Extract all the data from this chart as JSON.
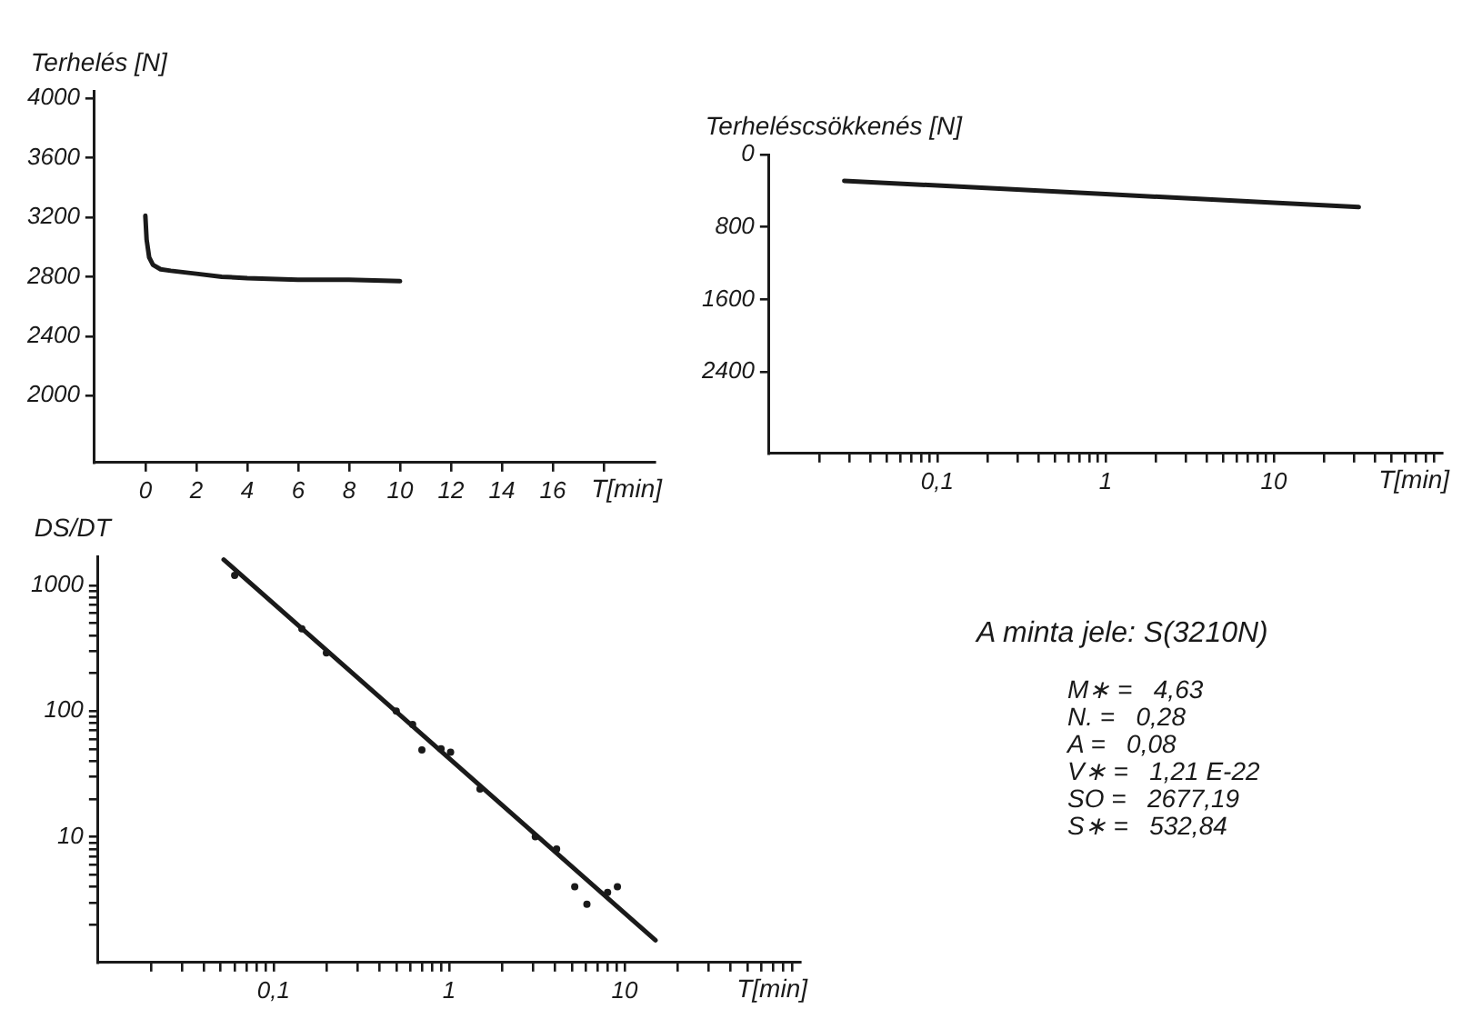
{
  "chart_data": [
    {
      "type": "line",
      "ylabel": "Terhelés [N]",
      "xlabel": "T[min]",
      "xlim": [
        -2,
        20
      ],
      "ylim": [
        1550,
        4050
      ],
      "xticks": [
        0,
        2,
        4,
        6,
        8,
        10,
        12,
        14,
        16,
        {
          "value": 18,
          "label": null
        }
      ],
      "yticks": [
        2000,
        2400,
        2800,
        3200,
        3600,
        4000
      ],
      "grid": false,
      "legend": false,
      "marker": "none",
      "line_style": "solid",
      "series": [
        {
          "color": "#1a1a1a",
          "x": [
            0,
            0.05,
            0.15,
            0.3,
            0.6,
            1,
            2,
            3,
            4,
            6,
            8,
            10
          ],
          "values": [
            3210,
            3050,
            2930,
            2880,
            2850,
            2840,
            2820,
            2800,
            2790,
            2780,
            2780,
            2770
          ]
        }
      ]
    },
    {
      "type": "line",
      "ylabel": "Terheléscsökkenés [N]",
      "xlabel": "T[min]",
      "log": "x",
      "xlim": [
        0.01,
        100
      ],
      "ylim": [
        3300,
        0
      ],
      "xticks": [
        {
          "value": 0.02,
          "label": null
        },
        {
          "value": 0.03,
          "label": null
        },
        {
          "value": 0.04,
          "label": null
        },
        {
          "value": 0.05,
          "label": null
        },
        {
          "value": 0.06,
          "label": null
        },
        {
          "value": 0.07,
          "label": null
        },
        {
          "value": 0.08,
          "label": null
        },
        {
          "value": 0.09,
          "label": null
        },
        {
          "value": 0.1,
          "label": "0,1"
        },
        {
          "value": 0.2,
          "label": null
        },
        {
          "value": 0.3,
          "label": null
        },
        {
          "value": 0.4,
          "label": null
        },
        {
          "value": 0.5,
          "label": null
        },
        {
          "value": 0.6,
          "label": null
        },
        {
          "value": 0.7,
          "label": null
        },
        {
          "value": 0.8,
          "label": null
        },
        {
          "value": 0.9,
          "label": null
        },
        1,
        {
          "value": 2,
          "label": null
        },
        {
          "value": 3,
          "label": null
        },
        {
          "value": 4,
          "label": null
        },
        {
          "value": 5,
          "label": null
        },
        {
          "value": 6,
          "label": null
        },
        {
          "value": 7,
          "label": null
        },
        {
          "value": 8,
          "label": null
        },
        {
          "value": 9,
          "label": null
        },
        10,
        {
          "value": 20,
          "label": null
        },
        {
          "value": 30,
          "label": null
        },
        {
          "value": 40,
          "label": null
        },
        {
          "value": 50,
          "label": null
        },
        {
          "value": 60,
          "label": null
        },
        {
          "value": 70,
          "label": null
        },
        {
          "value": 80,
          "label": null
        },
        {
          "value": 90,
          "label": null
        }
      ],
      "yticks": [
        0,
        800,
        1600,
        2400
      ],
      "grid": false,
      "legend": false,
      "marker": "none",
      "line_style": "solid",
      "series": [
        {
          "color": "#1a1a1a",
          "x": [
            0.028,
            0.1,
            1,
            10,
            32
          ],
          "values": [
            290,
            342,
            437,
            532,
            580
          ]
        }
      ]
    },
    {
      "type": "scatter",
      "ylabel": "DS/DT",
      "xlabel": "T[min]",
      "log": "xy",
      "xlim": [
        0.01,
        100
      ],
      "ylim": [
        1,
        1700
      ],
      "xticks": [
        {
          "value": 0.02,
          "label": null
        },
        {
          "value": 0.03,
          "label": null
        },
        {
          "value": 0.04,
          "label": null
        },
        {
          "value": 0.05,
          "label": null
        },
        {
          "value": 0.06,
          "label": null
        },
        {
          "value": 0.07,
          "label": null
        },
        {
          "value": 0.08,
          "label": null
        },
        {
          "value": 0.09,
          "label": null
        },
        {
          "value": 0.1,
          "label": "0,1"
        },
        {
          "value": 0.2,
          "label": null
        },
        {
          "value": 0.3,
          "label": null
        },
        {
          "value": 0.4,
          "label": null
        },
        {
          "value": 0.5,
          "label": null
        },
        {
          "value": 0.6,
          "label": null
        },
        {
          "value": 0.7,
          "label": null
        },
        {
          "value": 0.8,
          "label": null
        },
        {
          "value": 0.9,
          "label": null
        },
        1,
        {
          "value": 2,
          "label": null
        },
        {
          "value": 3,
          "label": null
        },
        {
          "value": 4,
          "label": null
        },
        {
          "value": 5,
          "label": null
        },
        {
          "value": 6,
          "label": null
        },
        {
          "value": 7,
          "label": null
        },
        {
          "value": 8,
          "label": null
        },
        {
          "value": 9,
          "label": null
        },
        10,
        {
          "value": 20,
          "label": null
        },
        {
          "value": 30,
          "label": null
        },
        {
          "value": 40,
          "label": null
        },
        {
          "value": 50,
          "label": null
        },
        {
          "value": 60,
          "label": null
        },
        {
          "value": 70,
          "label": null
        },
        {
          "value": 80,
          "label": null
        },
        {
          "value": 90,
          "label": null
        }
      ],
      "yticks": [
        {
          "value": 2,
          "label": null
        },
        {
          "value": 3,
          "label": null
        },
        {
          "value": 4,
          "label": null
        },
        {
          "value": 5,
          "label": null
        },
        {
          "value": 6,
          "label": null
        },
        {
          "value": 7,
          "label": null
        },
        {
          "value": 8,
          "label": null
        },
        {
          "value": 9,
          "label": null
        },
        10,
        {
          "value": 20,
          "label": null
        },
        {
          "value": 30,
          "label": null
        },
        {
          "value": 40,
          "label": null
        },
        {
          "value": 50,
          "label": null
        },
        {
          "value": 60,
          "label": null
        },
        {
          "value": 70,
          "label": null
        },
        {
          "value": 80,
          "label": null
        },
        {
          "value": 90,
          "label": null
        },
        100,
        {
          "value": 200,
          "label": null
        },
        {
          "value": 300,
          "label": null
        },
        {
          "value": 400,
          "label": null
        },
        {
          "value": 500,
          "label": null
        },
        {
          "value": 600,
          "label": null
        },
        {
          "value": 700,
          "label": null
        },
        {
          "value": 800,
          "label": null
        },
        {
          "value": 900,
          "label": null
        },
        1000
      ],
      "grid": false,
      "legend": false,
      "series": [
        {
          "type": "scatter",
          "marker": "circle",
          "color": "#1a1a1a",
          "x": [
            0.06,
            0.145,
            0.2,
            0.5,
            0.62,
            0.7,
            0.9,
            1.02,
            1.5,
            3.1,
            4.1,
            5.2,
            6.1,
            8,
            9.1
          ],
          "values": [
            1200,
            450,
            290,
            100,
            78,
            49,
            50,
            47,
            24,
            10,
            8,
            4,
            2.9,
            3.6,
            4
          ]
        },
        {
          "type": "line",
          "marker": "none",
          "line_style": "solid",
          "color": "#1a1a1a",
          "x": [
            0.052,
            15
          ],
          "values": [
            1600,
            1.5
          ]
        }
      ]
    },
    {
      "type": "other",
      "title": "A minta jele:  S(3210N)",
      "annotations": [
        "M∗ =   4,63",
        "N. =   0,28",
        "A =   0,08",
        "V∗ =   1,21 E-22",
        "SO =   2677,19",
        "S∗ =   532,84"
      ]
    }
  ]
}
